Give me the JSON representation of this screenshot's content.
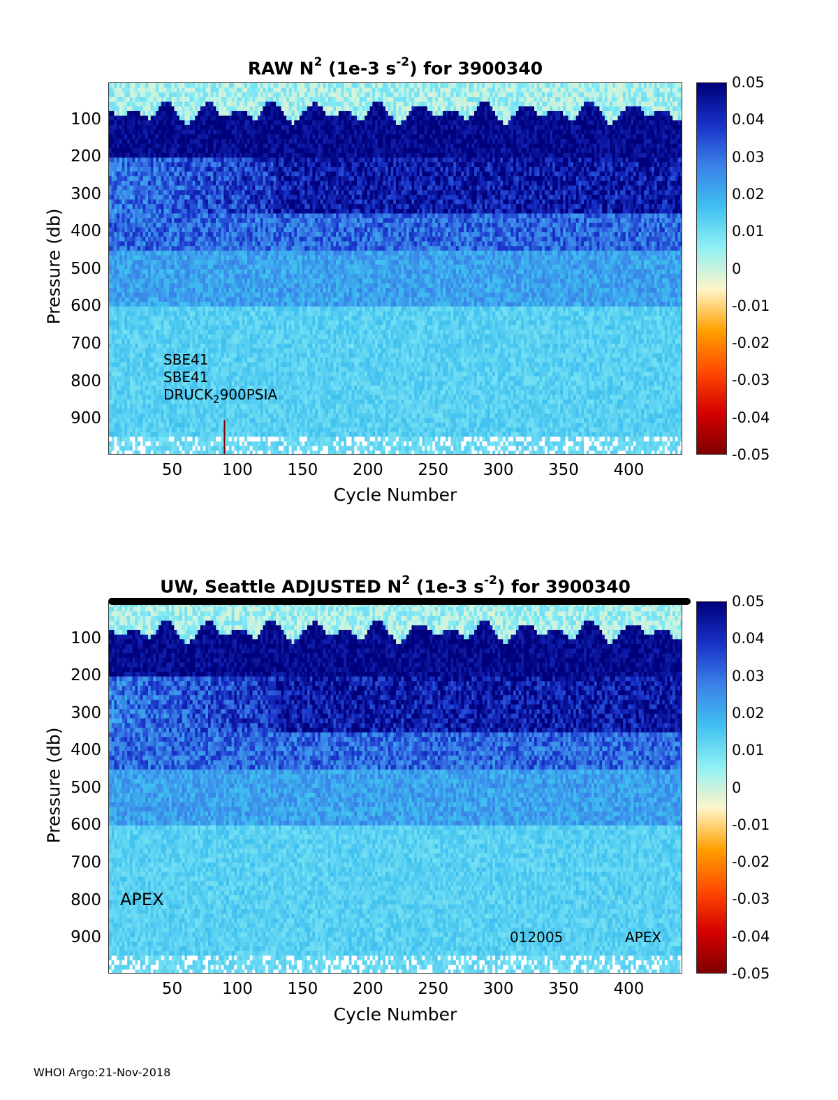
{
  "footer": "WHOI Argo:21-Nov-2018",
  "chart_data": [
    {
      "type": "heatmap",
      "title_parts": [
        "RAW N",
        "2",
        " (1e-3 s",
        "-2",
        ") for 3900340"
      ],
      "xlabel": "Cycle Number",
      "ylabel": "Pressure (db)",
      "xlim": [
        1,
        441
      ],
      "ylim": [
        0,
        995
      ],
      "y_reversed": true,
      "x_ticks": [
        "50",
        "100",
        "150",
        "200",
        "250",
        "300",
        "350",
        "400"
      ],
      "y_ticks": [
        "100",
        "200",
        "300",
        "400",
        "500",
        "600",
        "700",
        "800",
        "900"
      ],
      "colorbar_ticks": [
        "0.05",
        "0.04",
        "0.03",
        "0.02",
        "0.01",
        "0",
        "-0.01",
        "-0.02",
        "-0.03",
        "-0.04",
        "-0.05"
      ],
      "clim": [
        -0.05,
        0.05
      ],
      "colormap": [
        "#7f0000",
        "#d50000",
        "#ff4a00",
        "#ffa000",
        "#fff5c8",
        "#8ff0f5",
        "#3fc0f0",
        "#3a80e8",
        "#1830c8",
        "#00007a"
      ],
      "annotations": {
        "line1": "SBE41",
        "line2": "SBE41",
        "line3_a": "DRUCK",
        "line3_sub": "2",
        "line3_b": "900PSIA"
      },
      "notable_features": {
        "vertical_spike_cycle": 89,
        "vertical_spike_top_db": 900
      }
    },
    {
      "type": "heatmap",
      "title_parts": [
        "UW, Seattle  ADJUSTED N",
        "2",
        " (1e-3 s",
        "-2",
        ") for 3900340"
      ],
      "xlabel": "Cycle Number",
      "ylabel": "Pressure (db)",
      "xlim": [
        1,
        441
      ],
      "ylim": [
        0,
        995
      ],
      "y_reversed": true,
      "x_ticks": [
        "50",
        "100",
        "150",
        "200",
        "250",
        "300",
        "350",
        "400"
      ],
      "y_ticks": [
        "100",
        "200",
        "300",
        "400",
        "500",
        "600",
        "700",
        "800",
        "900"
      ],
      "colorbar_ticks": [
        "0.05",
        "0.04",
        "0.03",
        "0.02",
        "0.01",
        "0",
        "-0.01",
        "-0.02",
        "-0.03",
        "-0.04",
        "-0.05"
      ],
      "clim": [
        -0.05,
        0.05
      ],
      "colormap": [
        "#7f0000",
        "#d50000",
        "#ff4a00",
        "#ffa000",
        "#fff5c8",
        "#8ff0f5",
        "#3fc0f0",
        "#3a80e8",
        "#1830c8",
        "#00007a"
      ],
      "annotations": {
        "left": "APEX",
        "right_a": "012005",
        "right_b": "APEX"
      }
    }
  ]
}
